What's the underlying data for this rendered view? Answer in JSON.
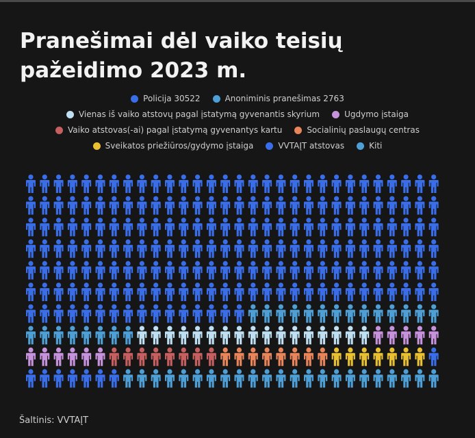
{
  "title_line1": "Pranešimai dėl vaiko teisių",
  "title_line2": "pažeidimo 2023 m.",
  "source": "Šaltinis: VVTAĮT",
  "legend_rows": [
    [
      0,
      1
    ],
    [
      2,
      3
    ],
    [
      4,
      5
    ],
    [
      6,
      7,
      8
    ]
  ],
  "chart_data": {
    "type": "pictogram",
    "grid": false,
    "rows": 10,
    "columns": 30,
    "icon": "person-icon",
    "total_icons": 300,
    "categories": [
      {
        "label": "Policija 30522",
        "color": "#3a6ee8",
        "icons": 196
      },
      {
        "label": "Anoniminis pranešimas 2763",
        "color": "#4d9fd6",
        "icons": 22
      },
      {
        "label": "Vienas iš vaiko atstovų pagal įstatymą gyvenantis skyrium",
        "color": "#bfe0f3",
        "icons": 17
      },
      {
        "label": "Ugdymo įstaiga",
        "color": "#c792dc",
        "icons": 11
      },
      {
        "label": "Vaiko atstovas(-ai) pagal įstatymą gyvenantys kartu",
        "color": "#c65f5f",
        "icons": 8
      },
      {
        "label": "Socialinių paslaugų centras",
        "color": "#e8855a",
        "icons": 8
      },
      {
        "label": "Sveikatos priežiūros/gydymo įstaiga",
        "color": "#e8c032",
        "icons": 7
      },
      {
        "label": "VVTAĮT atstovas",
        "color": "#3a6ee8",
        "icons": 8
      },
      {
        "label": "Kiti",
        "color": "#4d9fd6",
        "icons": 23
      }
    ]
  }
}
